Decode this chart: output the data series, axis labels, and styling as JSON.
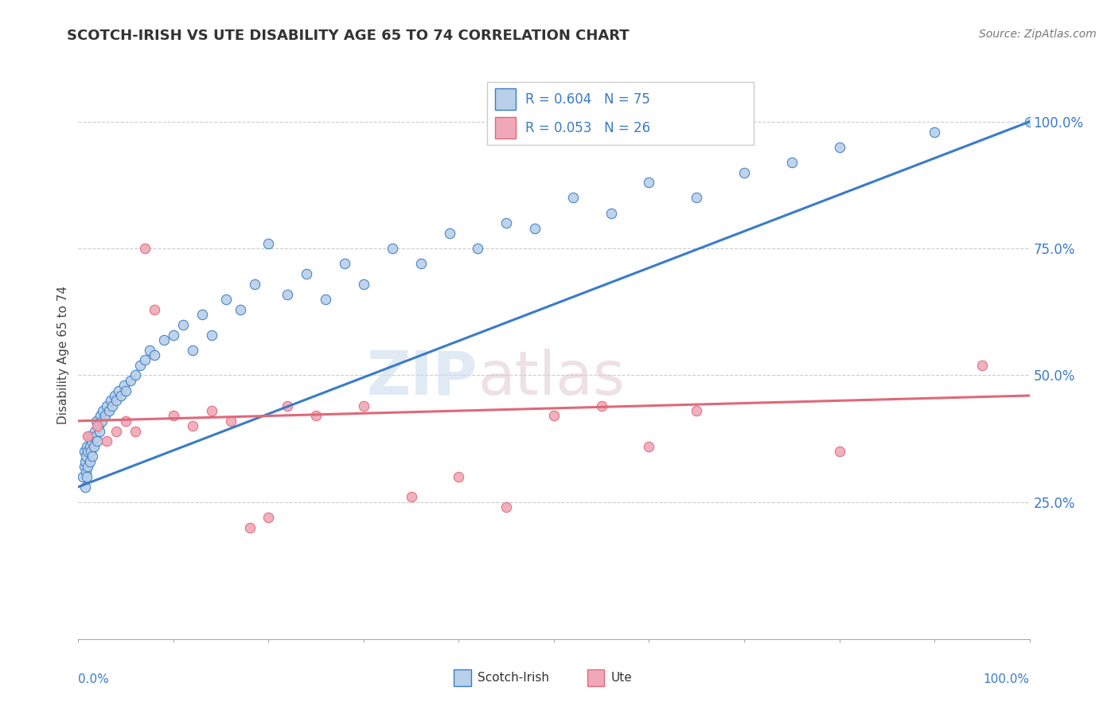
{
  "title": "SCOTCH-IRISH VS UTE DISABILITY AGE 65 TO 74 CORRELATION CHART",
  "source": "Source: ZipAtlas.com",
  "ylabel": "Disability Age 65 to 74",
  "xlim": [
    0.0,
    1.0
  ],
  "ylim": [
    -0.02,
    1.1
  ],
  "yticks": [
    0.25,
    0.5,
    0.75,
    1.0
  ],
  "ytick_labels": [
    "25.0%",
    "50.0%",
    "75.0%",
    "100.0%"
  ],
  "legend_r1": "R = 0.604",
  "legend_n1": "N = 75",
  "legend_r2": "R = 0.053",
  "legend_n2": "N = 26",
  "legend_label1": "Scotch-Irish",
  "legend_label2": "Ute",
  "color_blue": "#b8d0e8",
  "color_pink": "#f0a8b8",
  "line_color_blue": "#3a7bc8",
  "line_color_pink": "#e06878",
  "scotch_irish_x": [
    0.005,
    0.006,
    0.006,
    0.007,
    0.007,
    0.008,
    0.008,
    0.009,
    0.009,
    0.01,
    0.01,
    0.011,
    0.012,
    0.012,
    0.013,
    0.014,
    0.015,
    0.015,
    0.016,
    0.017,
    0.018,
    0.019,
    0.02,
    0.021,
    0.022,
    0.023,
    0.025,
    0.026,
    0.028,
    0.03,
    0.032,
    0.034,
    0.036,
    0.038,
    0.04,
    0.042,
    0.045,
    0.048,
    0.05,
    0.055,
    0.06,
    0.065,
    0.07,
    0.075,
    0.08,
    0.09,
    0.1,
    0.11,
    0.12,
    0.13,
    0.14,
    0.155,
    0.17,
    0.185,
    0.2,
    0.22,
    0.24,
    0.26,
    0.28,
    0.3,
    0.33,
    0.36,
    0.39,
    0.42,
    0.45,
    0.48,
    0.52,
    0.56,
    0.6,
    0.65,
    0.7,
    0.75,
    0.8,
    0.9,
    1.0
  ],
  "scotch_irish_y": [
    0.3,
    0.32,
    0.35,
    0.28,
    0.33,
    0.31,
    0.34,
    0.3,
    0.36,
    0.32,
    0.35,
    0.38,
    0.33,
    0.36,
    0.35,
    0.37,
    0.34,
    0.38,
    0.36,
    0.39,
    0.38,
    0.41,
    0.37,
    0.4,
    0.39,
    0.42,
    0.41,
    0.43,
    0.42,
    0.44,
    0.43,
    0.45,
    0.44,
    0.46,
    0.45,
    0.47,
    0.46,
    0.48,
    0.47,
    0.49,
    0.5,
    0.52,
    0.53,
    0.55,
    0.54,
    0.57,
    0.58,
    0.6,
    0.55,
    0.62,
    0.58,
    0.65,
    0.63,
    0.68,
    0.76,
    0.66,
    0.7,
    0.65,
    0.72,
    0.68,
    0.75,
    0.72,
    0.78,
    0.75,
    0.8,
    0.79,
    0.85,
    0.82,
    0.88,
    0.85,
    0.9,
    0.92,
    0.95,
    0.98,
    1.0
  ],
  "ute_x": [
    0.01,
    0.02,
    0.03,
    0.04,
    0.05,
    0.06,
    0.07,
    0.08,
    0.1,
    0.12,
    0.14,
    0.16,
    0.18,
    0.2,
    0.22,
    0.25,
    0.3,
    0.35,
    0.4,
    0.45,
    0.5,
    0.55,
    0.6,
    0.65,
    0.8,
    0.95
  ],
  "ute_y": [
    0.38,
    0.4,
    0.37,
    0.39,
    0.41,
    0.39,
    0.75,
    0.63,
    0.42,
    0.4,
    0.43,
    0.41,
    0.2,
    0.22,
    0.44,
    0.42,
    0.44,
    0.26,
    0.3,
    0.24,
    0.42,
    0.44,
    0.36,
    0.43,
    0.35,
    0.52
  ]
}
